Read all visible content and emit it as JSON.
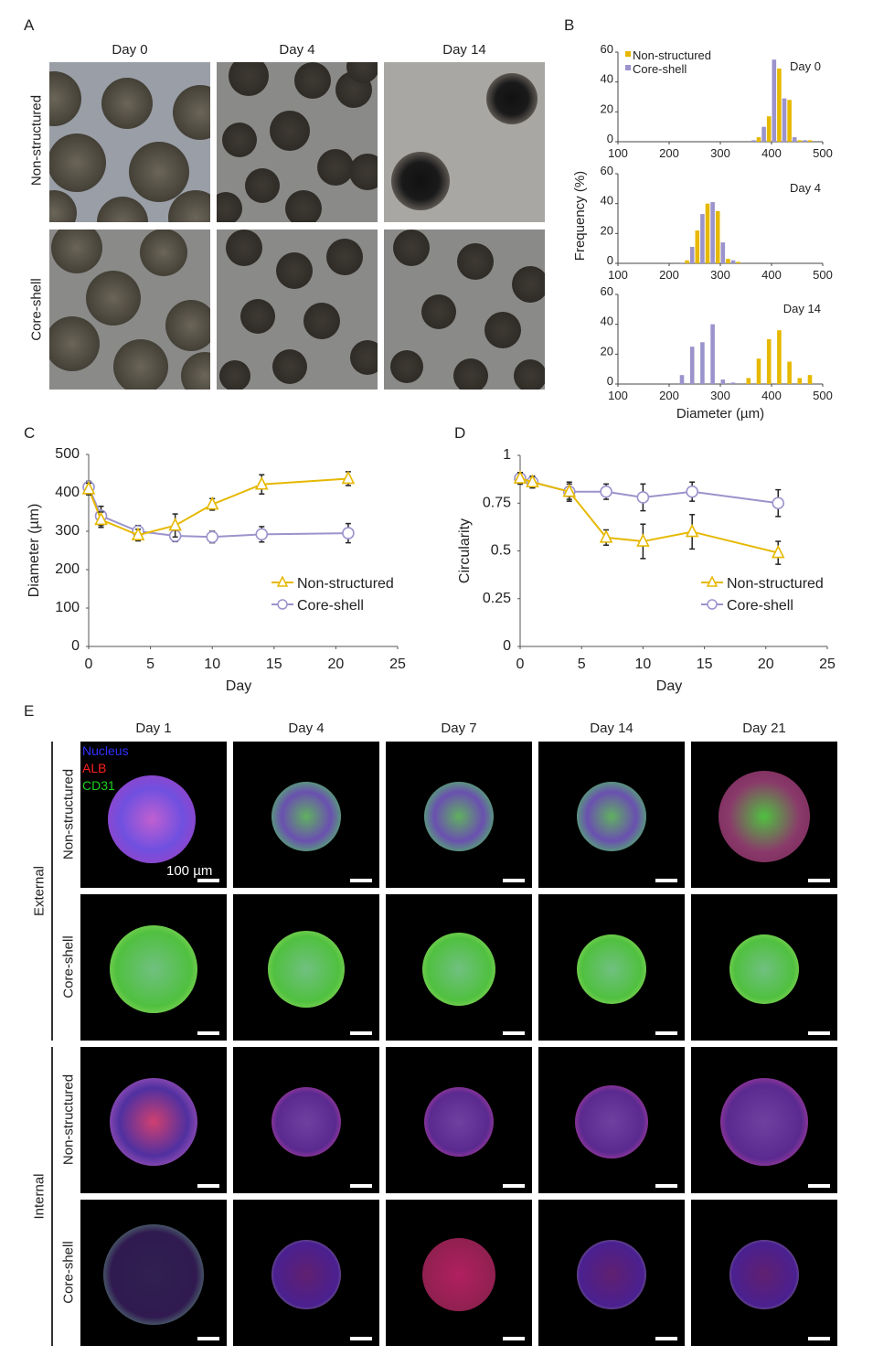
{
  "panels": {
    "a": "A",
    "b": "B",
    "c": "C",
    "d": "D",
    "e": "E"
  },
  "panel_a": {
    "columns": [
      "Day 0",
      "Day 4",
      "Day 14"
    ],
    "rows": [
      "Non-structured",
      "Core-shell"
    ]
  },
  "panel_e": {
    "columns": [
      "Day 1",
      "Day 4",
      "Day 7",
      "Day 14",
      "Day 21"
    ],
    "groups": [
      "External",
      "Internal"
    ],
    "rows": [
      "Non-structured",
      "Core-shell",
      "Non-structured",
      "Core-shell"
    ],
    "legend": [
      {
        "label": "Nucleus",
        "color": "#2a2aff"
      },
      {
        "label": "ALB",
        "color": "#ff2020"
      },
      {
        "label": "CD31",
        "color": "#20d020"
      }
    ],
    "scale_bar": "100 µm"
  },
  "colors": {
    "non_structured": "#e6b800",
    "core_shell": "#9b93cc"
  },
  "chart_data": [
    {
      "id": "B",
      "type": "bar",
      "ylabel": "Frequency (%)",
      "xlabel": "Diameter (µm)",
      "xlim": [
        100,
        500
      ],
      "ylim": [
        0,
        60
      ],
      "xticks": [
        100,
        200,
        300,
        400,
        500
      ],
      "yticks": [
        0,
        20,
        40,
        60
      ],
      "legend": [
        "Non-structured",
        "Core-shell"
      ],
      "legend_position": "top-left",
      "bin_width": 20,
      "subplots": [
        {
          "title": "Day 0",
          "bins": [
            360,
            380,
            400,
            420,
            440,
            460
          ],
          "series": [
            {
              "name": "Core-shell",
              "values": [
                1,
                10,
                55,
                29,
                3,
                1
              ]
            },
            {
              "name": "Non-structured",
              "values": [
                3,
                17,
                49,
                28,
                1,
                1
              ]
            }
          ]
        },
        {
          "title": "Day 4",
          "bins": [
            220,
            240,
            260,
            280,
            300,
            320
          ],
          "series": [
            {
              "name": "Core-shell",
              "values": [
                0.5,
                11,
                33,
                41,
                14,
                2
              ]
            },
            {
              "name": "Non-structured",
              "values": [
                2,
                22,
                40,
                35,
                3,
                1
              ]
            }
          ]
        },
        {
          "title": "Day 14",
          "bins": [
            220,
            240,
            260,
            280,
            300,
            320,
            340,
            360,
            380,
            400,
            420,
            440,
            460
          ],
          "series": [
            {
              "name": "Core-shell",
              "values": [
                6,
                25,
                28,
                40,
                3,
                1,
                0,
                0,
                0,
                0,
                0,
                0,
                0
              ]
            },
            {
              "name": "Non-structured",
              "values": [
                0,
                0,
                0,
                0,
                0,
                0,
                4,
                17,
                30,
                36,
                15,
                4,
                6
              ]
            }
          ]
        }
      ]
    },
    {
      "id": "C",
      "type": "line",
      "xlabel": "Day",
      "ylabel": "Diameter (µm)",
      "xlim": [
        0,
        25
      ],
      "ylim": [
        0,
        500
      ],
      "xticks": [
        0,
        5,
        10,
        15,
        20,
        25
      ],
      "yticks": [
        0,
        100,
        200,
        300,
        400,
        500
      ],
      "legend_position": "center-right",
      "x": [
        0,
        1,
        4,
        7,
        10,
        14,
        21
      ],
      "series": [
        {
          "name": "Non-structured",
          "marker": "triangle",
          "values": [
            410,
            330,
            290,
            315,
            370,
            422,
            437
          ],
          "errors": [
            15,
            20,
            15,
            30,
            15,
            25,
            18
          ]
        },
        {
          "name": "Core-shell",
          "marker": "circle",
          "values": [
            415,
            340,
            300,
            288,
            285,
            292,
            295
          ],
          "errors": [
            15,
            25,
            15,
            15,
            15,
            20,
            25
          ]
        }
      ]
    },
    {
      "id": "D",
      "type": "line",
      "xlabel": "Day",
      "ylabel": "Circularity",
      "xlim": [
        0,
        25
      ],
      "ylim": [
        0,
        1
      ],
      "xticks": [
        0,
        5,
        10,
        15,
        20,
        25
      ],
      "yticks": [
        0,
        0.25,
        0.5,
        0.75,
        1
      ],
      "legend_position": "center-right",
      "x": [
        0,
        1,
        4,
        7,
        10,
        14,
        21
      ],
      "series": [
        {
          "name": "Non-structured",
          "marker": "triangle",
          "values": [
            0.88,
            0.86,
            0.81,
            0.57,
            0.55,
            0.6,
            0.49
          ],
          "errors": [
            0.03,
            0.03,
            0.05,
            0.04,
            0.09,
            0.09,
            0.06
          ]
        },
        {
          "name": "Core-shell",
          "marker": "circle",
          "values": [
            0.88,
            0.86,
            0.81,
            0.81,
            0.78,
            0.81,
            0.75
          ],
          "errors": [
            0.03,
            0.03,
            0.04,
            0.04,
            0.07,
            0.05,
            0.07
          ]
        }
      ]
    }
  ]
}
